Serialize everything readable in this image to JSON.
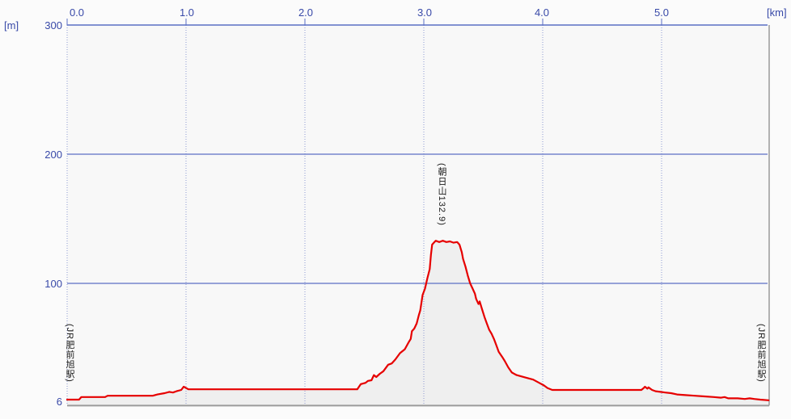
{
  "units": {
    "elevation": "[m]",
    "distance": "[km]"
  },
  "y_axis": {
    "labels": [
      "300",
      "200",
      "100",
      "6"
    ]
  },
  "x_axis": {
    "labels": [
      "0.0",
      "1.0",
      "2.0",
      "3.0",
      "4.0",
      "5.0"
    ]
  },
  "annotations": {
    "peak": "(朝日山132.9)",
    "start_station": "(JR肥前旭駅)",
    "end_station": "(JR肥前旭駅)"
  },
  "colors": {
    "axis_text": "#3849a8",
    "grid_solid": "#5b6fc4",
    "grid_dotted": "#8d9ad2",
    "line": "#e60000",
    "area_fill": "#efefef",
    "plot_bg": "#f8f8f8",
    "border_gray": "#9a9a9a",
    "annotation_text": "#1a1a1a"
  },
  "chart_data": {
    "type": "area",
    "xlabel": "[km]",
    "ylabel": "[m]",
    "xlim": [
      0,
      5.9
    ],
    "ylim": [
      6,
      300
    ],
    "x_ticks": [
      0,
      1,
      2,
      3,
      4,
      5
    ],
    "y_gridlines": [
      100,
      200
    ],
    "y_top": 300,
    "y_base": 6,
    "peak": {
      "name": "朝日山",
      "elevation_m": 132.9,
      "distance_km": 3.15
    },
    "series": [
      {
        "name": "elevation_profile",
        "points": [
          [
            0,
            10
          ],
          [
            0.1,
            10
          ],
          [
            0.12,
            12
          ],
          [
            0.32,
            12
          ],
          [
            0.34,
            13
          ],
          [
            0.72,
            13
          ],
          [
            0.76,
            14
          ],
          [
            0.82,
            15
          ],
          [
            0.86,
            16
          ],
          [
            0.89,
            15.5
          ],
          [
            0.92,
            16.5
          ],
          [
            0.96,
            17.5
          ],
          [
            0.98,
            20
          ],
          [
            1.02,
            18
          ],
          [
            2.44,
            18
          ],
          [
            2.47,
            22
          ],
          [
            2.51,
            23
          ],
          [
            2.53,
            24.5
          ],
          [
            2.56,
            25
          ],
          [
            2.58,
            29
          ],
          [
            2.6,
            27.5
          ],
          [
            2.63,
            30
          ],
          [
            2.66,
            32
          ],
          [
            2.7,
            37
          ],
          [
            2.73,
            38
          ],
          [
            2.76,
            41
          ],
          [
            2.8,
            46
          ],
          [
            2.84,
            49
          ],
          [
            2.87,
            54
          ],
          [
            2.89,
            57
          ],
          [
            2.9,
            63
          ],
          [
            2.92,
            65
          ],
          [
            2.94,
            69
          ],
          [
            2.96,
            76
          ],
          [
            2.97,
            79
          ],
          [
            2.99,
            91
          ],
          [
            3.01,
            96
          ],
          [
            3.03,
            104
          ],
          [
            3.05,
            111
          ],
          [
            3.06,
            122
          ],
          [
            3.07,
            130
          ],
          [
            3.09,
            132
          ],
          [
            3.1,
            133
          ],
          [
            3.13,
            132
          ],
          [
            3.16,
            133
          ],
          [
            3.19,
            132
          ],
          [
            3.22,
            132.5
          ],
          [
            3.25,
            131.5
          ],
          [
            3.28,
            132
          ],
          [
            3.3,
            130
          ],
          [
            3.32,
            124
          ],
          [
            3.33,
            119
          ],
          [
            3.35,
            113
          ],
          [
            3.37,
            106
          ],
          [
            3.39,
            100
          ],
          [
            3.41,
            96
          ],
          [
            3.43,
            92
          ],
          [
            3.44,
            88
          ],
          [
            3.46,
            84
          ],
          [
            3.47,
            86
          ],
          [
            3.49,
            80
          ],
          [
            3.51,
            74
          ],
          [
            3.53,
            69
          ],
          [
            3.55,
            64
          ],
          [
            3.57,
            61
          ],
          [
            3.59,
            57
          ],
          [
            3.61,
            52
          ],
          [
            3.63,
            47
          ],
          [
            3.66,
            43
          ],
          [
            3.68,
            40
          ],
          [
            3.71,
            35
          ],
          [
            3.74,
            31
          ],
          [
            3.78,
            29
          ],
          [
            3.82,
            28
          ],
          [
            3.86,
            27
          ],
          [
            3.92,
            25.5
          ],
          [
            3.97,
            23
          ],
          [
            4.01,
            21
          ],
          [
            4.04,
            19
          ],
          [
            4.08,
            17.5
          ],
          [
            4.83,
            17.5
          ],
          [
            4.85,
            19
          ],
          [
            4.86,
            20
          ],
          [
            4.88,
            18.5
          ],
          [
            4.89,
            19.5
          ],
          [
            4.92,
            17.5
          ],
          [
            4.95,
            16.5
          ],
          [
            4.99,
            16
          ],
          [
            5.03,
            15.5
          ],
          [
            5.08,
            15
          ],
          [
            5.13,
            14
          ],
          [
            5.2,
            13.5
          ],
          [
            5.28,
            13
          ],
          [
            5.36,
            12.5
          ],
          [
            5.44,
            12
          ],
          [
            5.5,
            11.5
          ],
          [
            5.53,
            12
          ],
          [
            5.56,
            11
          ],
          [
            5.64,
            11
          ],
          [
            5.7,
            10.5
          ],
          [
            5.74,
            11
          ],
          [
            5.78,
            10.5
          ],
          [
            5.83,
            10
          ],
          [
            5.9,
            9.5
          ]
        ]
      }
    ]
  }
}
